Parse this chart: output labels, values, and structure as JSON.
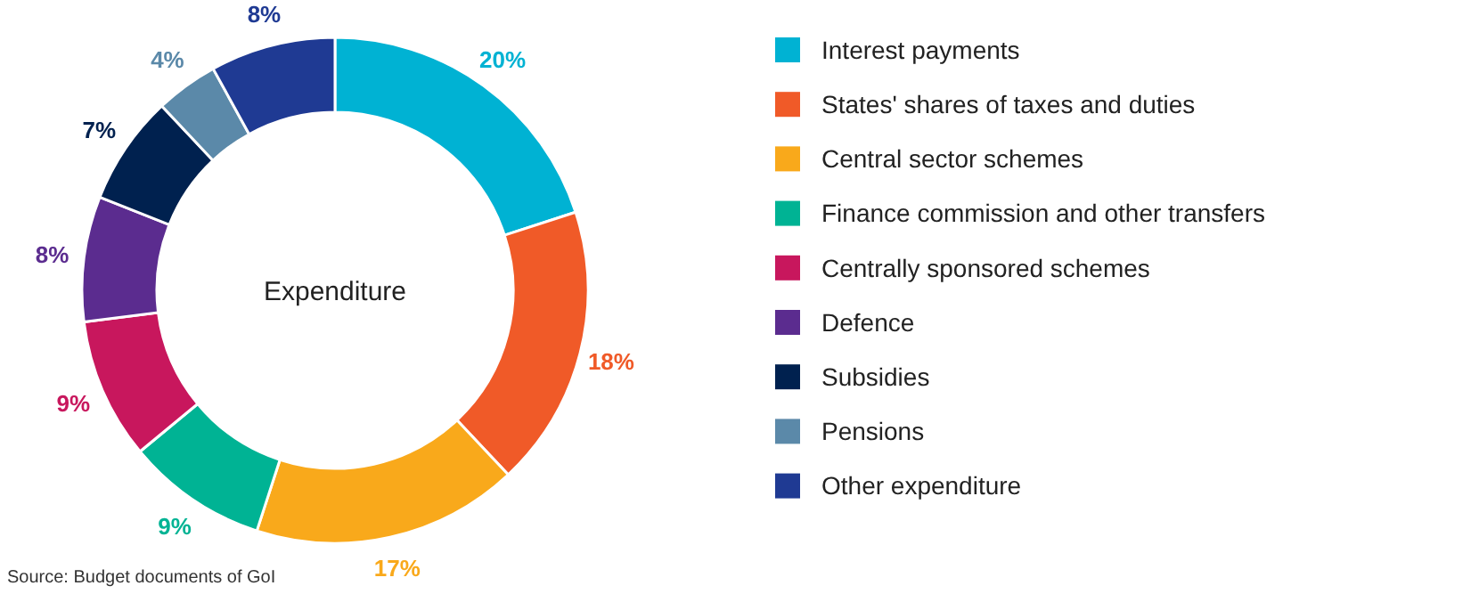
{
  "chart_data": {
    "type": "donut",
    "title": "Expenditure",
    "categories": [
      "Interest payments",
      "States' shares of taxes and duties",
      "Central sector schemes",
      "Finance commission and other transfers",
      "Centrally sponsored schemes",
      "Defence",
      "Subsidies",
      "Pensions",
      "Other expenditure"
    ],
    "values": [
      20,
      18,
      17,
      9,
      9,
      8,
      7,
      4,
      8
    ],
    "colors": [
      "#00b2d3",
      "#f05a28",
      "#f9a91b",
      "#00b394",
      "#c8175d",
      "#5b2c8f",
      "#00214f",
      "#5b89a9",
      "#1f3a93"
    ],
    "value_labels": [
      "20%",
      "18%",
      "17%",
      "9%",
      "9%",
      "8%",
      "7%",
      "4%",
      "8%"
    ],
    "legend": "right",
    "annotations": [
      "Source: Budget documents of GoI"
    ]
  }
}
